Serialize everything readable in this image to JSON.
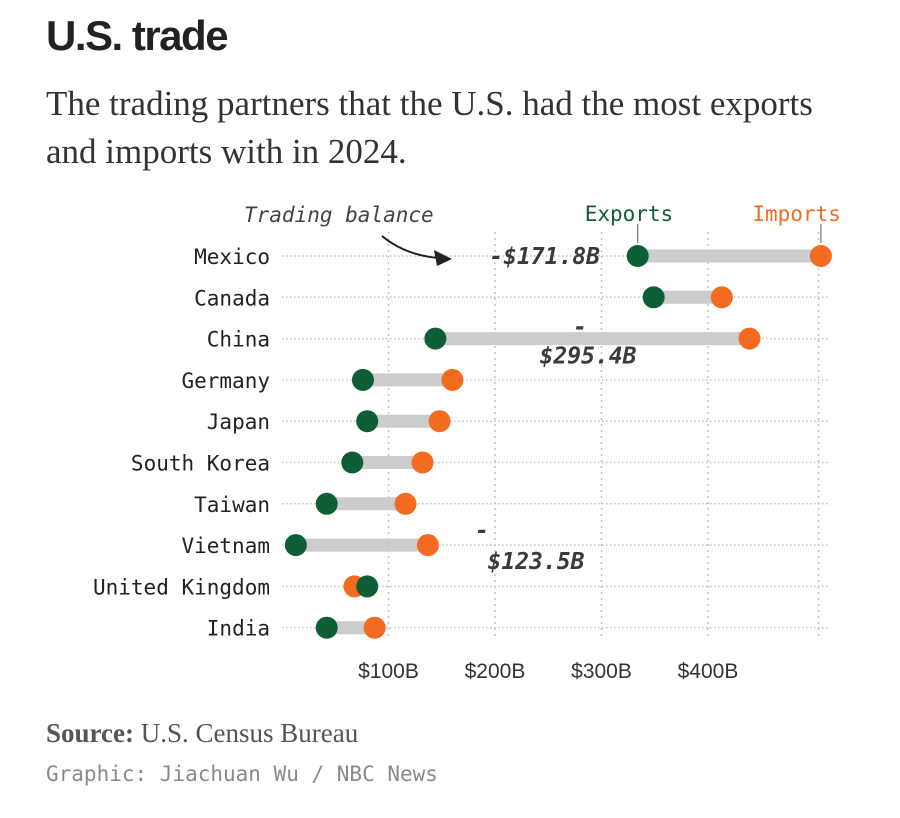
{
  "title": "U.S. trade",
  "subtitle": "The trading partners that the U.S. had the most exports and imports with in 2024.",
  "source_label": "Source:",
  "source_text": "U.S. Census Bureau",
  "credit": "Graphic: Jiachuan Wu / NBC News",
  "chart_data": {
    "type": "dumbbell",
    "legend": {
      "exports": "Exports",
      "imports": "Imports"
    },
    "annotation_label": "Trading balance",
    "xticks": [
      100,
      200,
      300,
      400
    ],
    "xtick_labels": [
      "$100B",
      "$200B",
      "$300B",
      "$400B"
    ],
    "xlim": [
      0,
      500
    ],
    "grid": true,
    "colors": {
      "exports": "#0e5e35",
      "imports": "#f26b21",
      "connector": "#cccccc"
    },
    "countries": [
      {
        "name": "Mexico",
        "exports": 334,
        "imports": 506,
        "balance_label": "-$171.8B"
      },
      {
        "name": "Canada",
        "exports": 349,
        "imports": 413,
        "balance_label": ""
      },
      {
        "name": "China",
        "exports": 144,
        "imports": 439,
        "balance_label": "-$295.4B"
      },
      {
        "name": "Germany",
        "exports": 76,
        "imports": 160,
        "balance_label": ""
      },
      {
        "name": "Japan",
        "exports": 80,
        "imports": 148,
        "balance_label": ""
      },
      {
        "name": "South Korea",
        "exports": 66,
        "imports": 132,
        "balance_label": ""
      },
      {
        "name": "Taiwan",
        "exports": 42,
        "imports": 116,
        "balance_label": ""
      },
      {
        "name": "Vietnam",
        "exports": 13,
        "imports": 137,
        "balance_label": "-$123.5B"
      },
      {
        "name": "United Kingdom",
        "exports": 80,
        "imports": 68,
        "balance_label": ""
      },
      {
        "name": "India",
        "exports": 42,
        "imports": 87,
        "balance_label": ""
      }
    ]
  }
}
